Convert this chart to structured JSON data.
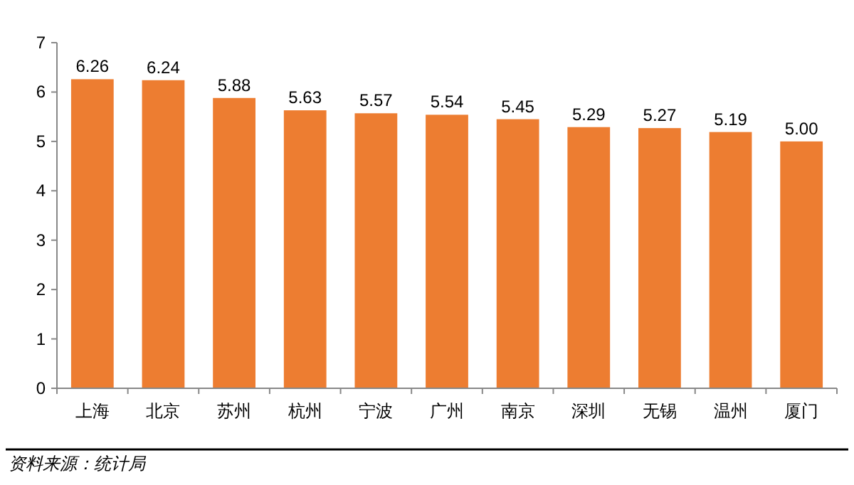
{
  "chart_data": {
    "type": "bar",
    "categories": [
      "上海",
      "北京",
      "苏州",
      "杭州",
      "宁波",
      "广州",
      "南京",
      "深圳",
      "无锡",
      "温州",
      "厦门"
    ],
    "values": [
      6.26,
      6.24,
      5.88,
      5.63,
      5.57,
      5.54,
      5.45,
      5.29,
      5.27,
      5.19,
      5.0
    ],
    "value_labels": [
      "6.26",
      "6.24",
      "5.88",
      "5.63",
      "5.57",
      "5.54",
      "5.45",
      "5.29",
      "5.27",
      "5.19",
      "5.00"
    ],
    "color": "#ed7d31",
    "ylim": [
      0,
      7
    ],
    "yticks": [
      0,
      1,
      2,
      3,
      4,
      5,
      6,
      7
    ],
    "annotations": [
      "资料来源：统计局"
    ]
  }
}
